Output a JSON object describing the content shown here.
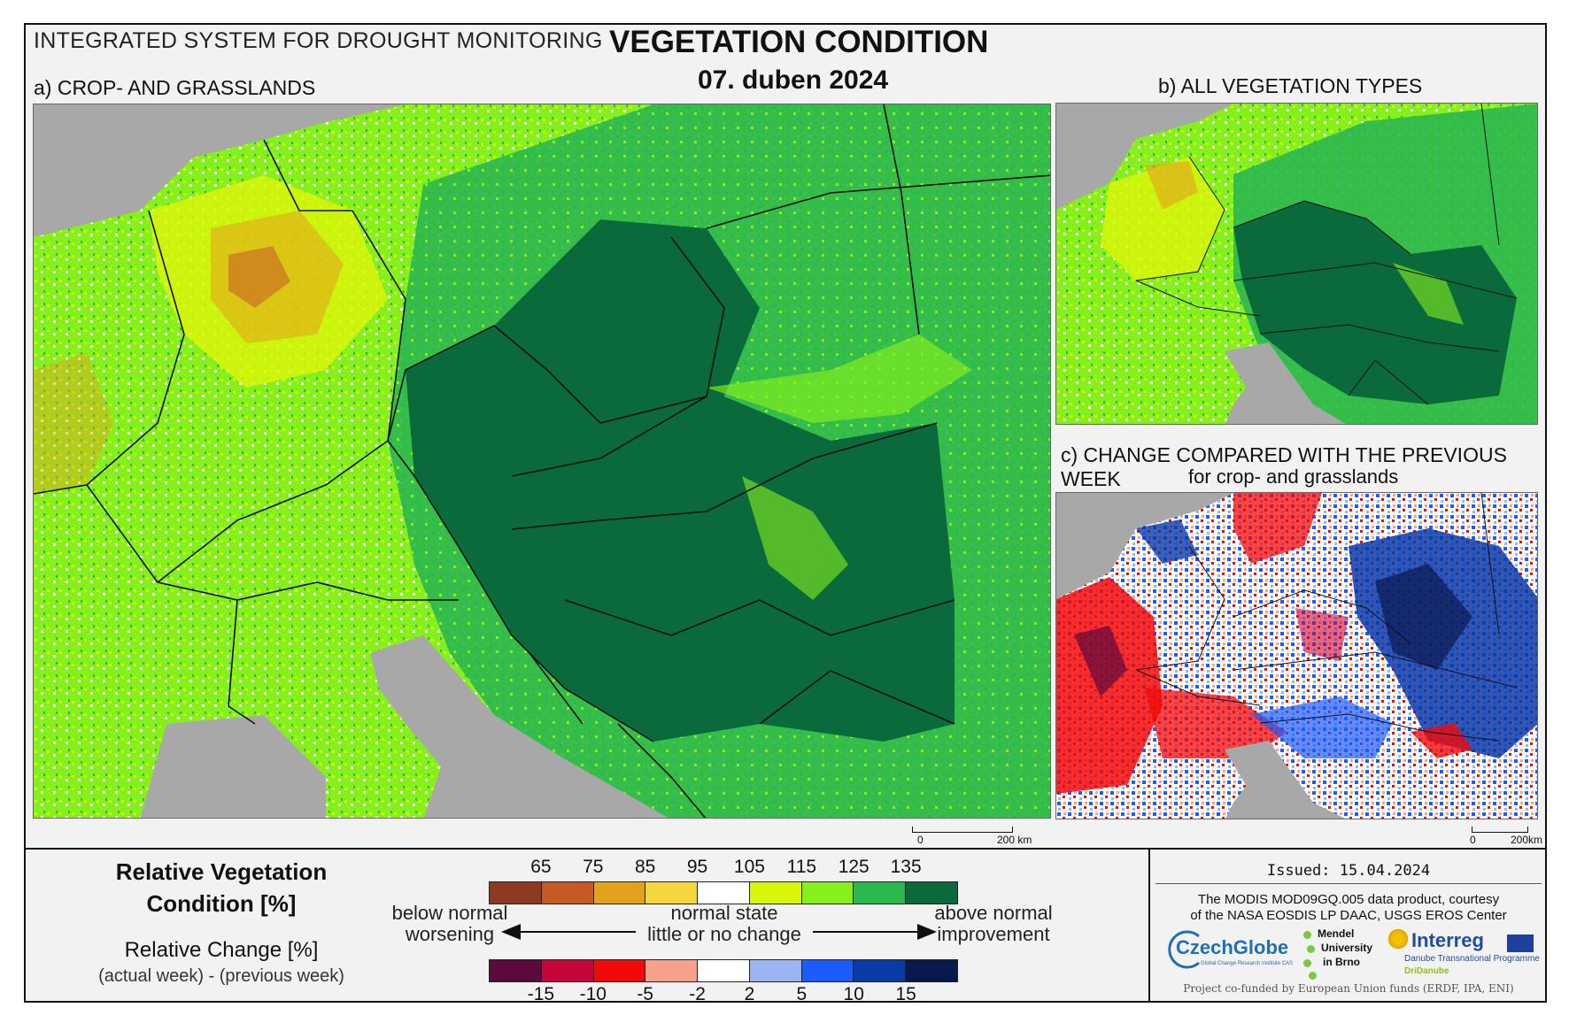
{
  "header": {
    "system": "INTEGRATED SYSTEM FOR DROUGHT MONITORING",
    "title": "VEGETATION CONDITION",
    "date": "07. duben 2024"
  },
  "panels": {
    "a": {
      "label": "a) CROP- AND GRASSLANDS",
      "scale_zero": "0",
      "scale_end": "200 km"
    },
    "b": {
      "label": "b) ALL VEGETATION TYPES"
    },
    "c": {
      "label": "c) CHANGE COMPARED WITH THE PREVIOUS WEEK",
      "sublabel": "for crop- and grasslands",
      "scale_zero": "0",
      "scale_end": "200km"
    }
  },
  "legend": {
    "rvc_title_line1": "Relative Vegetation",
    "rvc_title_line2": "Condition [%]",
    "rc_title": "Relative Change [%]",
    "rc_subtitle": "(actual week) - (previous week)",
    "rvc_ticks": [
      "65",
      "75",
      "85",
      "95",
      "105",
      "115",
      "125",
      "135"
    ],
    "rvc_colors": [
      "#8c3a22",
      "#c65a24",
      "#e3a21c",
      "#f7d53c",
      "#ffffff",
      "#d9f50a",
      "#86f01c",
      "#2bb84f",
      "#0b6a3c"
    ],
    "rc_ticks": [
      "-15",
      "-10",
      "-5",
      "-2",
      "2",
      "5",
      "10",
      "15"
    ],
    "rc_colors": [
      "#5c0a3c",
      "#c4063a",
      "#f20a0a",
      "#f7a08a",
      "#ffffff",
      "#9db4f2",
      "#1a5cff",
      "#0a3aa8",
      "#0a1850"
    ],
    "left_top": "below normal",
    "left_bottom": "worsening",
    "mid_top": "normal state",
    "mid_bottom": "little or no change",
    "right_top": "above normal",
    "right_bottom": "improvement"
  },
  "credits": {
    "issued": "Issued: 15.04.2024",
    "source_line1": "The MODIS MOD09GQ.005 data product, courtesy",
    "source_line2": "of the NASA EOSDIS LP DAAC, USGS EROS Center",
    "logo_czechglobe": "CzechGlobe",
    "logo_czechglobe_sub": "Global Change Research Institute CAS",
    "logo_mendel_1": "Mendel",
    "logo_mendel_2": "University",
    "logo_mendel_3": "in Brno",
    "logo_interreg": "Interreg",
    "logo_interreg_sub": "Danube Transnational Programme",
    "logo_dridanube": "DriDanube",
    "cofunded": "Project co-funded by European Union funds (ERDF, IPA, ENI)"
  }
}
